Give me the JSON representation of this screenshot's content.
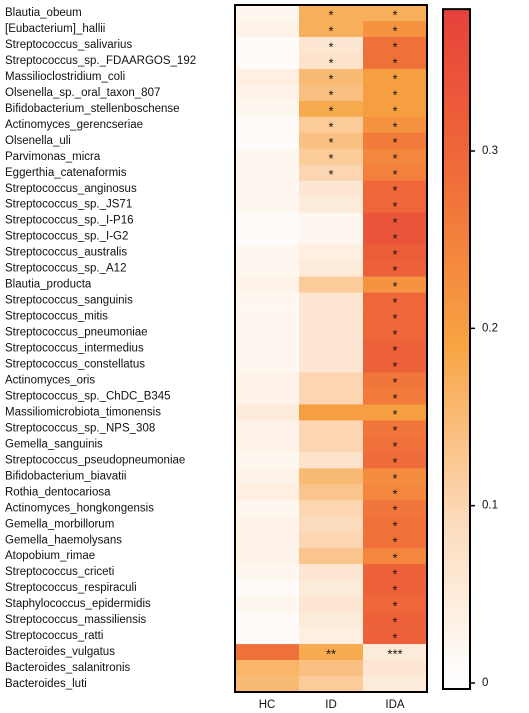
{
  "chart_data": {
    "type": "heatmap",
    "rows": [
      "Blautia_obeum",
      "[Eubacterium]_hallii",
      "Streptococcus_salivarius",
      "Streptococcus_sp._FDAARGOS_192",
      "Massilioclostridium_coli",
      "Olsenella_sp._oral_taxon_807",
      "Bifidobacterium_stellenboschense",
      "Actinomyces_gerencseriae",
      "Olsenella_uli",
      "Parvimonas_micra",
      "Eggerthia_catenaformis",
      "Streptococcus_anginosus",
      "Streptococcus_sp._JS71",
      "Streptococcus_sp._I-P16",
      "Streptococcus_sp._I-G2",
      "Streptococcus_australis",
      "Streptococcus_sp._A12",
      "Blautia_producta",
      "Streptococcus_sanguinis",
      "Streptococcus_mitis",
      "Streptococcus_pneumoniae",
      "Streptococcus_intermedius",
      "Streptococcus_constellatus",
      "Actinomyces_oris",
      "Streptococcus_sp._ChDC_B345",
      "Massiliomicrobiota_timonensis",
      "Streptococcus_sp._NPS_308",
      "Gemella_sanguinis",
      "Streptococcus_pseudopneumoniae",
      "Bifidobacterium_biavatii",
      "Rothia_dentocariosa",
      "Actinomyces_hongkongensis",
      "Gemella_morbillorum",
      "Gemella_haemolysans",
      "Atopobium_rimae",
      "Streptococcus_criceti",
      "Streptococcus_respiraculi",
      "Staphylococcus_epidermidis",
      "Streptococcus_massiliensis",
      "Streptococcus_ratti",
      "Bacteroides_vulgatus",
      "Bacteroides_salanitronis",
      "Bacteroides_luti"
    ],
    "columns": [
      "HC",
      "ID",
      "IDA"
    ],
    "values": [
      [
        0.02,
        0.17,
        0.17
      ],
      [
        0.03,
        0.17,
        0.22
      ],
      [
        0.01,
        0.06,
        0.28
      ],
      [
        0.01,
        0.07,
        0.28
      ],
      [
        0.04,
        0.15,
        0.2
      ],
      [
        0.03,
        0.14,
        0.2
      ],
      [
        0.02,
        0.18,
        0.2
      ],
      [
        0.01,
        0.12,
        0.22
      ],
      [
        0.01,
        0.14,
        0.26
      ],
      [
        0.02,
        0.12,
        0.24
      ],
      [
        0.02,
        0.1,
        0.25
      ],
      [
        0.02,
        0.06,
        0.3
      ],
      [
        0.02,
        0.05,
        0.3
      ],
      [
        0.01,
        0.02,
        0.34
      ],
      [
        0.01,
        0.02,
        0.34
      ],
      [
        0.02,
        0.04,
        0.32
      ],
      [
        0.02,
        0.05,
        0.31
      ],
      [
        0.03,
        0.12,
        0.22
      ],
      [
        0.02,
        0.06,
        0.3
      ],
      [
        0.02,
        0.06,
        0.3
      ],
      [
        0.02,
        0.06,
        0.3
      ],
      [
        0.02,
        0.06,
        0.31
      ],
      [
        0.02,
        0.06,
        0.31
      ],
      [
        0.03,
        0.1,
        0.27
      ],
      [
        0.03,
        0.1,
        0.26
      ],
      [
        0.05,
        0.2,
        0.2
      ],
      [
        0.03,
        0.1,
        0.27
      ],
      [
        0.03,
        0.1,
        0.28
      ],
      [
        0.02,
        0.07,
        0.29
      ],
      [
        0.03,
        0.15,
        0.23
      ],
      [
        0.04,
        0.13,
        0.24
      ],
      [
        0.02,
        0.1,
        0.27
      ],
      [
        0.03,
        0.09,
        0.28
      ],
      [
        0.03,
        0.1,
        0.28
      ],
      [
        0.03,
        0.13,
        0.24
      ],
      [
        0.02,
        0.06,
        0.31
      ],
      [
        0.01,
        0.05,
        0.31
      ],
      [
        0.02,
        0.06,
        0.3
      ],
      [
        0.01,
        0.05,
        0.31
      ],
      [
        0.01,
        0.04,
        0.31
      ],
      [
        0.28,
        0.18,
        0.05
      ],
      [
        0.16,
        0.14,
        0.06
      ],
      [
        0.15,
        0.12,
        0.05
      ]
    ],
    "annotations": [
      [
        null,
        "*",
        "*"
      ],
      [
        null,
        "*",
        "*"
      ],
      [
        null,
        "*",
        "*"
      ],
      [
        null,
        "*",
        "*"
      ],
      [
        null,
        "*",
        "*"
      ],
      [
        null,
        "*",
        "*"
      ],
      [
        null,
        "*",
        "*"
      ],
      [
        null,
        "*",
        "*"
      ],
      [
        null,
        "*",
        "*"
      ],
      [
        null,
        "*",
        "*"
      ],
      [
        null,
        "*",
        "*"
      ],
      [
        null,
        null,
        "*"
      ],
      [
        null,
        null,
        "*"
      ],
      [
        null,
        null,
        "*"
      ],
      [
        null,
        null,
        "*"
      ],
      [
        null,
        null,
        "*"
      ],
      [
        null,
        null,
        "*"
      ],
      [
        null,
        null,
        "*"
      ],
      [
        null,
        null,
        "*"
      ],
      [
        null,
        null,
        "*"
      ],
      [
        null,
        null,
        "*"
      ],
      [
        null,
        null,
        "*"
      ],
      [
        null,
        null,
        "*"
      ],
      [
        null,
        null,
        "*"
      ],
      [
        null,
        null,
        "*"
      ],
      [
        null,
        null,
        "*"
      ],
      [
        null,
        null,
        "*"
      ],
      [
        null,
        null,
        "*"
      ],
      [
        null,
        null,
        "*"
      ],
      [
        null,
        null,
        "*"
      ],
      [
        null,
        null,
        "*"
      ],
      [
        null,
        null,
        "*"
      ],
      [
        null,
        null,
        "*"
      ],
      [
        null,
        null,
        "*"
      ],
      [
        null,
        null,
        "*"
      ],
      [
        null,
        null,
        "*"
      ],
      [
        null,
        null,
        "*"
      ],
      [
        null,
        null,
        "*"
      ],
      [
        null,
        null,
        "*"
      ],
      [
        null,
        null,
        "*"
      ],
      [
        null,
        "**",
        "***"
      ],
      [
        null,
        null,
        null
      ],
      [
        null,
        null,
        null
      ]
    ],
    "zlim": [
      0,
      0.38
    ],
    "zticks": [
      0,
      0.1,
      0.2,
      0.3
    ],
    "colors": [
      "#ffffff",
      "#fcd9b8",
      "#f7a443",
      "#f06d39",
      "#e6413b"
    ]
  }
}
